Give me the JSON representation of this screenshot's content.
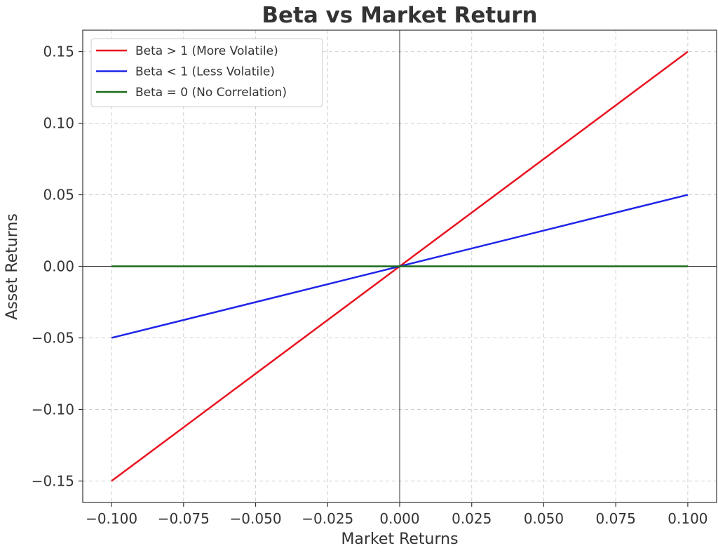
{
  "chart_data": {
    "type": "line",
    "title": "Beta vs Market Return",
    "xlabel": "Market Returns",
    "ylabel": "Asset Returns",
    "xlim": [
      -0.11,
      0.11
    ],
    "ylim": [
      -0.165,
      0.165
    ],
    "x_ticks": [
      -0.1,
      -0.075,
      -0.05,
      -0.025,
      0.0,
      0.025,
      0.05,
      0.075,
      0.1
    ],
    "x_tick_labels": [
      "−0.100",
      "−0.075",
      "−0.050",
      "−0.025",
      "0.000",
      "0.025",
      "0.050",
      "0.075",
      "0.100"
    ],
    "y_ticks": [
      -0.15,
      -0.1,
      -0.05,
      0.0,
      0.05,
      0.1,
      0.15
    ],
    "y_tick_labels": [
      "−0.15",
      "−0.10",
      "−0.05",
      "0.00",
      "0.05",
      "0.10",
      "0.15"
    ],
    "grid": true,
    "legend_position": "top-left",
    "zero_lines": true,
    "series": [
      {
        "name": "Beta > 1 (More Volatile)",
        "color": "#e8131f",
        "x": [
          -0.1,
          0.1
        ],
        "y": [
          -0.15,
          0.15
        ]
      },
      {
        "name": "Beta < 1 (Less Volatile)",
        "color": "#1f24e8",
        "x": [
          -0.1,
          0.1
        ],
        "y": [
          -0.05,
          0.05
        ]
      },
      {
        "name": "Beta = 0 (No Correlation)",
        "color": "#1a6b1a",
        "x": [
          -0.1,
          0.1
        ],
        "y": [
          0.0,
          0.0
        ]
      }
    ]
  }
}
